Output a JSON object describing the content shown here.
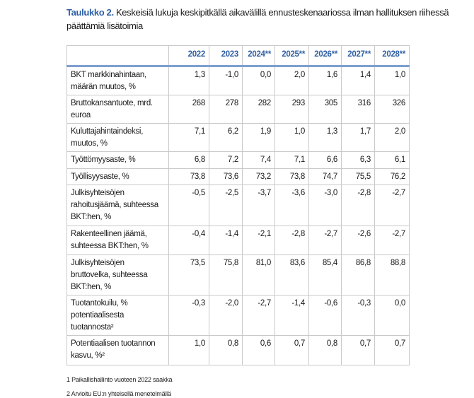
{
  "title": {
    "lead": "Taulukko 2.",
    "text": " Keskeisiä lukuja keskipitkällä aikavälillä ennusteskenaariossa ilman hallituksen riihessä päättämiä lisätoimia"
  },
  "table": {
    "columns": [
      "",
      "2022",
      "2023",
      "2024**",
      "2025**",
      "2026**",
      "2027**",
      "2028**"
    ],
    "rows": [
      {
        "label": "BKT markkinahintaan, määrän muutos, %",
        "values": [
          "1,3",
          "-1,0",
          "0,0",
          "2,0",
          "1,6",
          "1,4",
          "1,0"
        ]
      },
      {
        "label": "Bruttokansantuote, mrd. euroa",
        "values": [
          "268",
          "278",
          "282",
          "293",
          "305",
          "316",
          "326"
        ]
      },
      {
        "label": "Kuluttajahintaindeksi, muutos, %",
        "values": [
          "7,1",
          "6,2",
          "1,9",
          "1,0",
          "1,3",
          "1,7",
          "2,0"
        ]
      },
      {
        "label": "Työttömyysaste, %",
        "values": [
          "6,8",
          "7,2",
          "7,4",
          "7,1",
          "6,6",
          "6,3",
          "6,1"
        ]
      },
      {
        "label": "Työllisyysaste, %",
        "values": [
          "73,8",
          "73,6",
          "73,2",
          "73,8",
          "74,7",
          "75,5",
          "76,2"
        ]
      },
      {
        "label": "Julkisyhteisöjen rahoitusjäämä, suhteessa BKT:hen, %",
        "values": [
          "-0,5",
          "-2,5",
          "-3,7",
          "-3,6",
          "-3,0",
          "-2,8",
          "-2,7"
        ]
      },
      {
        "label": "Rakenteellinen jäämä, suhteessa BKT:hen, %",
        "values": [
          "-0,4",
          "-1,4",
          "-2,1",
          "-2,8",
          "-2,7",
          "-2,6",
          "-2,7"
        ]
      },
      {
        "label": "Julkisyhteisöjen bruttovelka, suhteessa BKT:hen, %",
        "values": [
          "73,5",
          "75,8",
          "81,0",
          "83,6",
          "85,4",
          "86,8",
          "88,8"
        ]
      },
      {
        "label": "Tuotantokuilu, % potentiaalisesta tuotannosta²",
        "values": [
          "-0,3",
          "-2,0",
          "-2,7",
          "-1,4",
          "-0,6",
          "-0,3",
          "0,0"
        ]
      },
      {
        "label": "Potentiaalisen tuotannon kasvu, %²",
        "values": [
          "1,0",
          "0,8",
          "0,6",
          "0,7",
          "0,8",
          "0,7",
          "0,7"
        ]
      }
    ]
  },
  "footnotes": [
    "1 Paikallishallinto vuoteen 2022 saakka",
    "2 Arvioitu EU:n yhteisellä menetelmällä"
  ]
}
